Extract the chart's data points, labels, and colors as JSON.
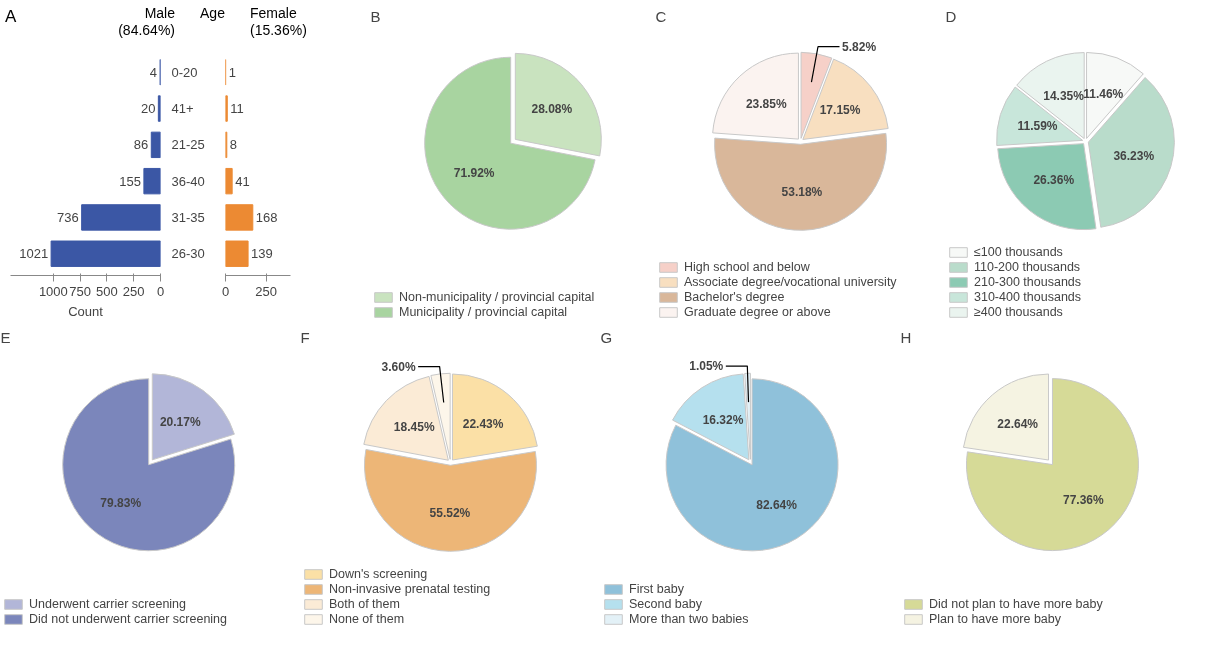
{
  "chart_data": [
    {
      "type": "bar",
      "orientation": "horizontal",
      "title": "Male (84.64%)",
      "annotations": [
        "A",
        "Age"
      ],
      "xlabel": "Count",
      "categories": [
        "0-20",
        "41+",
        "21-25",
        "36-40",
        "31-35",
        "26-30"
      ],
      "values": [
        4,
        20,
        86,
        155,
        736,
        1021
      ],
      "color": "#3b57a5",
      "xlim": [
        1400,
        0
      ],
      "xticks": [
        0,
        250,
        500,
        750,
        1000
      ],
      "data_labels": true,
      "grid": false
    },
    {
      "type": "bar",
      "orientation": "horizontal",
      "title": "Female (15.36%)",
      "tick_labels": "x",
      "categories": [
        null,
        null,
        null,
        null,
        null,
        null
      ],
      "values": [
        1,
        11,
        8,
        41,
        168,
        139
      ],
      "color": "#ec8a33",
      "xlim": [
        0,
        400
      ],
      "xticks": [
        0,
        250
      ],
      "data_labels": true,
      "grid": false
    },
    {
      "type": "pie",
      "title": "B",
      "legend": "bottom",
      "categories": [
        "Non-municipality / provincial capital",
        "Municipality / provincial capital"
      ],
      "values": [
        28.08,
        71.92
      ],
      "colors": [
        "#c9e3bf",
        "#a8d4a0"
      ],
      "value_labels": [
        "28.08%",
        "71.92%"
      ]
    },
    {
      "type": "pie",
      "title": "C",
      "legend": "bottom",
      "categories": [
        "High school and below",
        "Associate degree/vocational university",
        "Bachelor's degree",
        "Graduate degree or above"
      ],
      "values": [
        5.82,
        17.15,
        53.18,
        23.85
      ],
      "colors": [
        "#f6d0c8",
        "#f8dfc0",
        "#d9b79a",
        "#fbf3f0"
      ],
      "value_labels": [
        "5.82%",
        "17.15%",
        "53.18%",
        "23.85%"
      ]
    },
    {
      "type": "pie",
      "title": "D",
      "legend": "bottom",
      "categories": [
        "≤100 thousands",
        "110-200 thousands",
        "210-300 thousands",
        "310-400 thousands",
        "≥400 thousands"
      ],
      "values": [
        11.46,
        36.23,
        26.36,
        11.59,
        14.35
      ],
      "colors": [
        "#f7f9f7",
        "#b9dccb",
        "#8ccab3",
        "#c8e6da",
        "#eaf4ef"
      ],
      "value_labels": [
        "11.46%",
        "36.23%",
        "26.36%",
        "11.59%",
        "14.35%"
      ]
    },
    {
      "type": "pie",
      "title": "E",
      "legend": "bottom",
      "categories": [
        "Underwent carrier screening",
        "Did not underwent carrier screening"
      ],
      "values": [
        20.17,
        79.83
      ],
      "colors": [
        "#b2b6d8",
        "#7b86bb"
      ],
      "value_labels": [
        "20.17%",
        "79.83%"
      ]
    },
    {
      "type": "pie",
      "title": "F",
      "legend": "bottom",
      "categories": [
        "Down's screening",
        "Non-invasive prenatal testing",
        "Both of them",
        "None of them"
      ],
      "values": [
        22.43,
        55.52,
        18.45,
        3.6
      ],
      "colors": [
        "#fbe0a6",
        "#edb677",
        "#fbebd6",
        "#fdf6ea"
      ],
      "value_labels": [
        "22.43%",
        "55.52%",
        "18.45%",
        "3.60%"
      ]
    },
    {
      "type": "pie",
      "title": "G",
      "legend": "bottom",
      "categories": [
        "First baby",
        "Second baby",
        "More than two babies"
      ],
      "values": [
        82.64,
        16.32,
        1.05
      ],
      "colors": [
        "#8fc1da",
        "#b5e0ee",
        "#e3f1f7"
      ],
      "value_labels": [
        "82.64%",
        "16.32%",
        "1.05%"
      ]
    },
    {
      "type": "pie",
      "title": "H",
      "legend": "bottom",
      "categories": [
        "Did not plan to have more baby",
        "Plan to have more baby"
      ],
      "values": [
        77.36,
        22.64
      ],
      "colors": [
        "#d6da97",
        "#f5f3e2"
      ],
      "value_labels": [
        "77.36%",
        "22.64%"
      ]
    }
  ]
}
